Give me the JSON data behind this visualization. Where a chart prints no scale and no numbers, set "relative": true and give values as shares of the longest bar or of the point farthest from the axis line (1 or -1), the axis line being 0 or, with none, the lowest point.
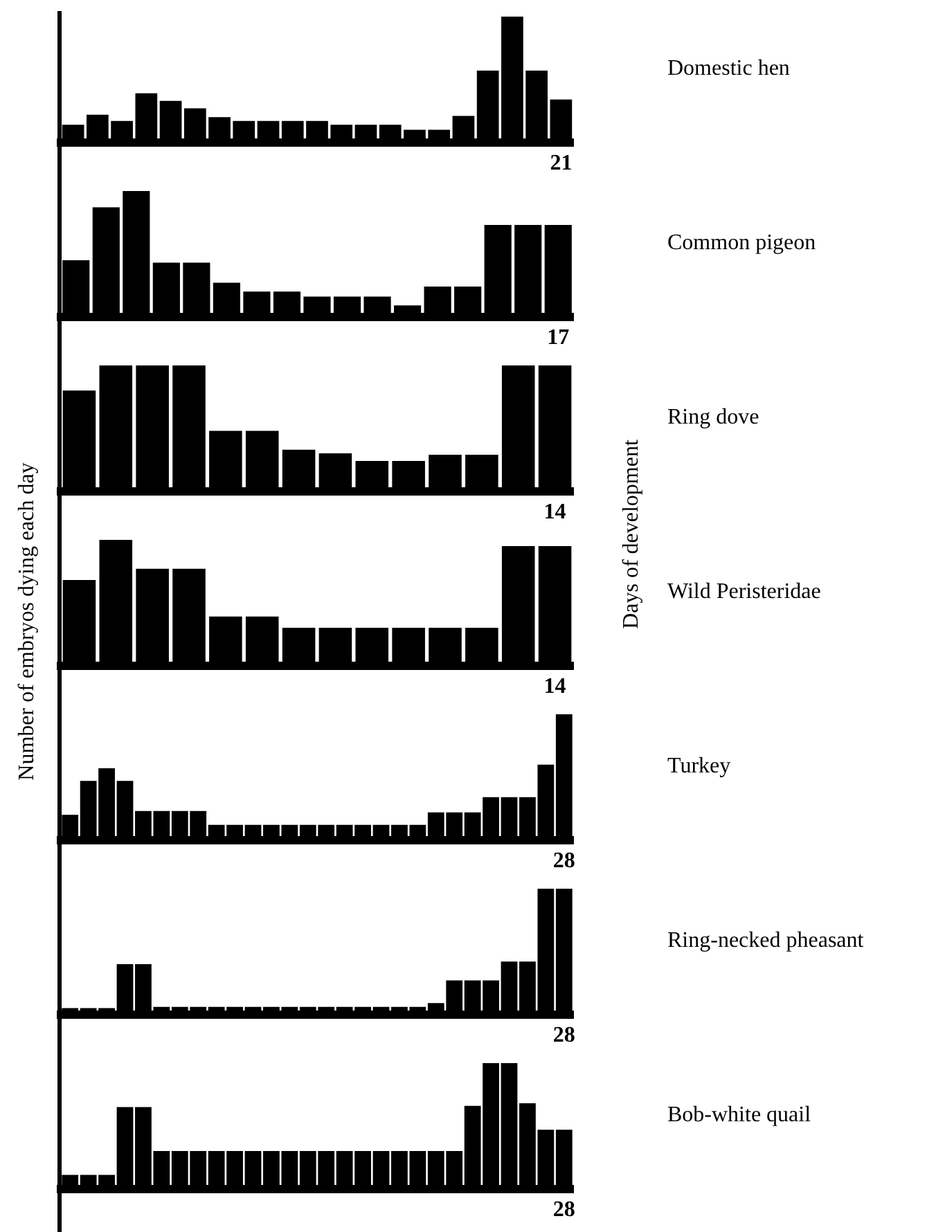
{
  "chart_data": [
    {
      "type": "bar",
      "relative": true,
      "categories": [
        null,
        null,
        null,
        null,
        null,
        null,
        null,
        null,
        null,
        null,
        null,
        null,
        null,
        null,
        null,
        null,
        null,
        null,
        null,
        null,
        "21"
      ],
      "series": [
        {
          "name": "Domestic hen",
          "color": "#000000",
          "values": [
            0.14,
            0.22,
            0.17,
            0.39,
            0.33,
            0.27,
            0.2,
            0.17,
            0.17,
            0.17,
            0.17,
            0.14,
            0.14,
            0.14,
            0.1,
            0.1,
            0.21,
            0.57,
            1,
            0.57,
            0.34
          ]
        }
      ]
    },
    {
      "type": "bar",
      "relative": true,
      "categories": [
        null,
        null,
        null,
        null,
        null,
        null,
        null,
        null,
        null,
        null,
        null,
        null,
        null,
        null,
        null,
        null,
        "17"
      ],
      "series": [
        {
          "name": "Common pigeon",
          "color": "#000000",
          "values": [
            0.45,
            0.87,
            1,
            0.43,
            0.43,
            0.27,
            0.2,
            0.2,
            0.16,
            0.16,
            0.16,
            0.09,
            0.24,
            0.24,
            0.73,
            0.73,
            0.73
          ]
        }
      ]
    },
    {
      "type": "bar",
      "relative": true,
      "categories": [
        null,
        null,
        null,
        null,
        null,
        null,
        null,
        null,
        null,
        null,
        null,
        null,
        null,
        "14"
      ],
      "series": [
        {
          "name": "Ring dove",
          "color": "#000000",
          "values": [
            0.8,
            1,
            1,
            1,
            0.48,
            0.48,
            0.33,
            0.3,
            0.24,
            0.24,
            0.29,
            0.29,
            1,
            1
          ]
        }
      ]
    },
    {
      "type": "bar",
      "relative": true,
      "ylabel": "Number of embryos dying each day",
      "y2label": "Days of development",
      "categories": [
        null,
        null,
        null,
        null,
        null,
        null,
        null,
        null,
        null,
        null,
        null,
        null,
        null,
        "14"
      ],
      "series": [
        {
          "name": "Wild Peristeridae",
          "color": "#000000",
          "values": [
            0.68,
            1,
            0.77,
            0.77,
            0.39,
            0.39,
            0.3,
            0.3,
            0.3,
            0.3,
            0.3,
            0.3,
            0.95,
            0.95
          ]
        }
      ]
    },
    {
      "type": "bar",
      "relative": true,
      "categories": [
        null,
        null,
        null,
        null,
        null,
        null,
        null,
        null,
        null,
        null,
        null,
        null,
        null,
        null,
        null,
        null,
        null,
        null,
        null,
        null,
        null,
        null,
        null,
        null,
        null,
        null,
        null,
        "28"
      ],
      "series": [
        {
          "name": "Turkey",
          "color": "#000000",
          "values": [
            0.2,
            0.47,
            0.57,
            0.47,
            0.23,
            0.23,
            0.23,
            0.23,
            0.12,
            0.12,
            0.12,
            0.12,
            0.12,
            0.12,
            0.12,
            0.12,
            0.12,
            0.12,
            0.12,
            0.12,
            0.22,
            0.22,
            0.22,
            0.34,
            0.34,
            0.34,
            0.6,
            1
          ]
        }
      ]
    },
    {
      "type": "bar",
      "relative": true,
      "categories": [
        null,
        null,
        null,
        null,
        null,
        null,
        null,
        null,
        null,
        null,
        null,
        null,
        null,
        null,
        null,
        null,
        null,
        null,
        null,
        null,
        null,
        null,
        null,
        null,
        null,
        null,
        null,
        "28"
      ],
      "series": [
        {
          "name": "Ring-necked pheasant",
          "color": "#000000",
          "values": [
            0.05,
            0.05,
            0.05,
            0.4,
            0.4,
            0.06,
            0.06,
            0.06,
            0.06,
            0.06,
            0.06,
            0.06,
            0.06,
            0.06,
            0.06,
            0.06,
            0.06,
            0.06,
            0.06,
            0.06,
            0.09,
            0.27,
            0.27,
            0.27,
            0.42,
            0.42,
            1,
            1
          ]
        }
      ]
    },
    {
      "type": "bar",
      "relative": true,
      "categories": [
        null,
        null,
        null,
        null,
        null,
        null,
        null,
        null,
        null,
        null,
        null,
        null,
        null,
        null,
        null,
        null,
        null,
        null,
        null,
        null,
        null,
        null,
        null,
        null,
        null,
        null,
        null,
        "28"
      ],
      "series": [
        {
          "name": "Bob-white quail",
          "color": "#000000",
          "values": [
            0.11,
            0.11,
            0.11,
            0.65,
            0.65,
            0.3,
            0.3,
            0.3,
            0.3,
            0.3,
            0.3,
            0.3,
            0.3,
            0.3,
            0.3,
            0.3,
            0.3,
            0.3,
            0.3,
            0.3,
            0.3,
            0.3,
            0.66,
            1,
            1,
            0.68,
            0.47,
            0.47
          ]
        }
      ]
    }
  ]
}
